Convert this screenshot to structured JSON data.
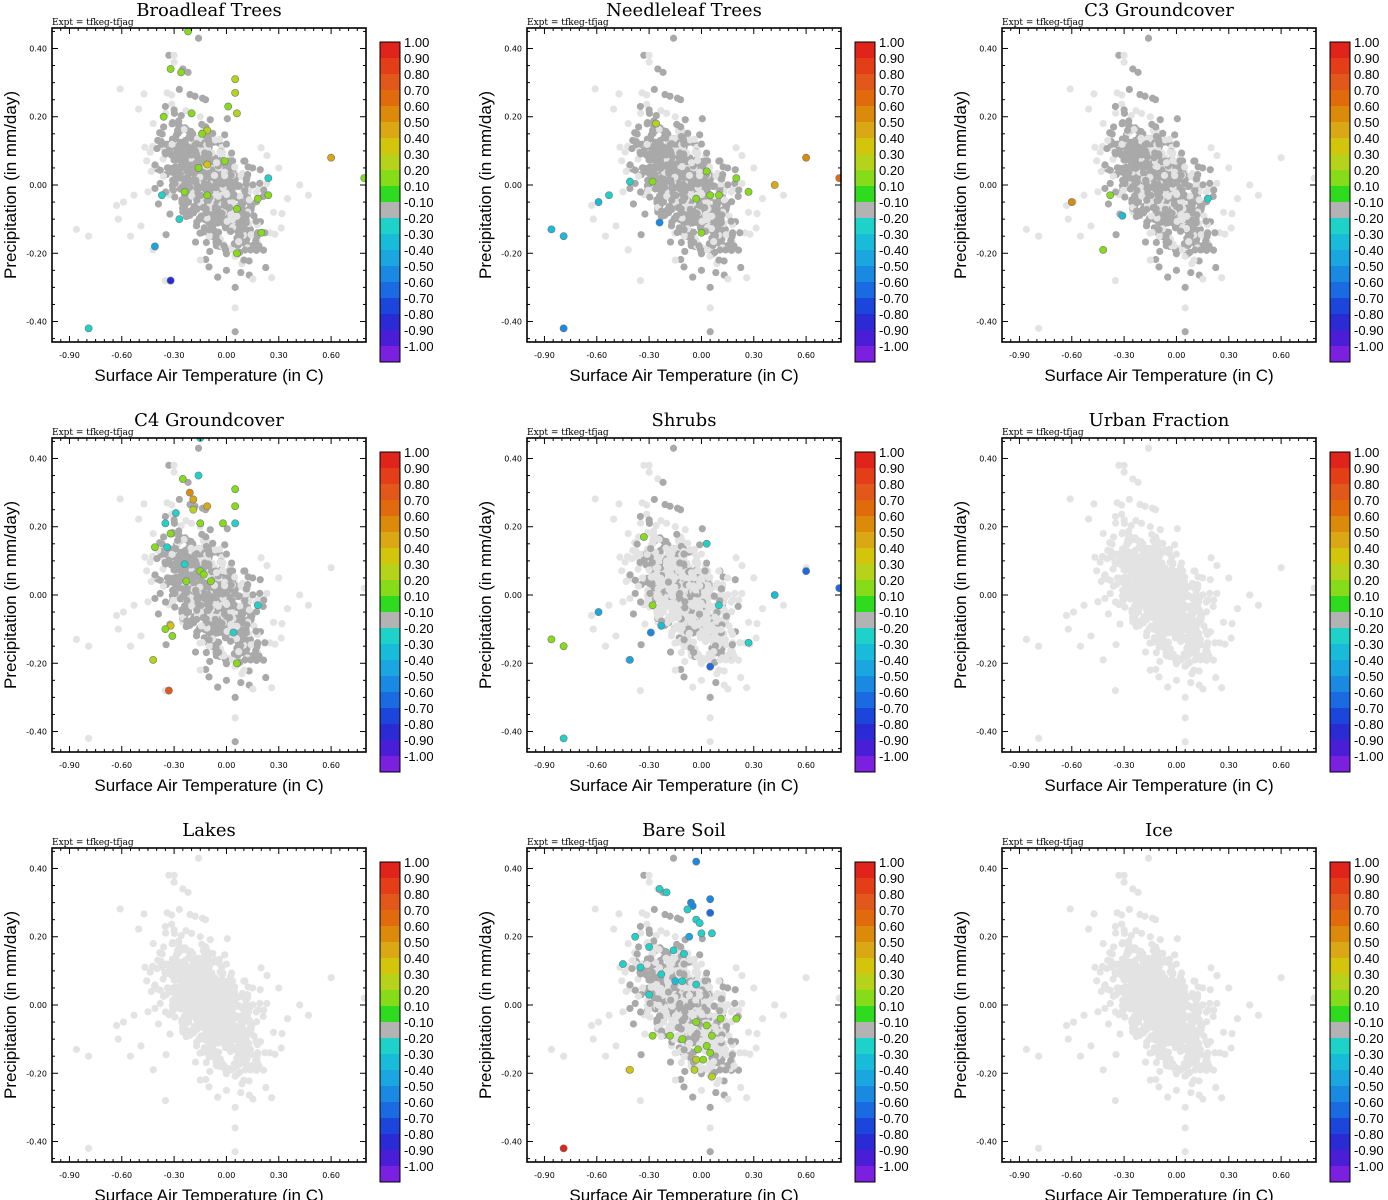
{
  "figure": {
    "annotation": "Expt = tfkeg-tfjag",
    "xlabel": "Surface Air Temperature (in C)",
    "ylabel": "Precipitation (in mm/day)",
    "x_ticks": [
      "-0.90",
      "-0.60",
      "-0.30",
      "0.00",
      "0.30",
      "0.60"
    ],
    "y_ticks": [
      "0.40",
      "0.20",
      "0.00",
      "-0.20",
      "-0.40"
    ]
  },
  "colorbar": {
    "labels": [
      "1.00",
      "0.90",
      "0.80",
      "0.70",
      "0.60",
      "0.50",
      "0.40",
      "0.30",
      "0.20",
      "0.10",
      "-0.10",
      "-0.20",
      "-0.30",
      "-0.40",
      "-0.50",
      "-0.60",
      "-0.70",
      "-0.80",
      "-0.90",
      "-1.00"
    ],
    "colors": [
      "#e0231b",
      "#e43e18",
      "#e2571a",
      "#e06a0c",
      "#dc8a0a",
      "#d9a814",
      "#d2c50c",
      "#b7d21a",
      "#86dc18",
      "#2fdb1f",
      "#b3b3b3",
      "#1fd2c9",
      "#18bcd8",
      "#1aa6de",
      "#1a89e1",
      "#1a6ae2",
      "#1c45db",
      "#2a2bd4",
      "#4a1dd6",
      "#7a20de"
    ]
  },
  "colors": {
    "background_point": "#e3e3e3",
    "neutral_point": "#a9a9a9"
  },
  "chart_data": [
    {
      "type": "scatter",
      "title": "Broadleaf Trees",
      "xlim": [
        -1.0,
        0.8
      ],
      "ylim": [
        -0.46,
        0.46
      ],
      "neutral_density": 0.75,
      "colored_points": [
        {
          "x": -0.22,
          "y": 0.45,
          "v": 0.15
        },
        {
          "x": -0.32,
          "y": 0.34,
          "v": 0.15
        },
        {
          "x": -0.26,
          "y": 0.33,
          "v": 0.2
        },
        {
          "x": 0.05,
          "y": 0.31,
          "v": 0.3
        },
        {
          "x": 0.05,
          "y": 0.27,
          "v": 0.3
        },
        {
          "x": 0.01,
          "y": 0.23,
          "v": 0.15
        },
        {
          "x": -0.2,
          "y": 0.21,
          "v": 0.15
        },
        {
          "x": -0.36,
          "y": 0.2,
          "v": 0.15
        },
        {
          "x": 0.06,
          "y": 0.21,
          "v": 0.3
        },
        {
          "x": -0.11,
          "y": 0.16,
          "v": 0.3
        },
        {
          "x": -0.14,
          "y": 0.15,
          "v": 0.15
        },
        {
          "x": -0.01,
          "y": 0.07,
          "v": 0.15
        },
        {
          "x": -0.11,
          "y": 0.06,
          "v": 0.4
        },
        {
          "x": 0.6,
          "y": 0.08,
          "v": 0.5
        },
        {
          "x": -0.16,
          "y": 0.05,
          "v": 0.15
        },
        {
          "x": 0.79,
          "y": 0.02,
          "v": 0.15
        },
        {
          "x": -0.37,
          "y": -0.03,
          "v": -0.2
        },
        {
          "x": -0.24,
          "y": -0.02,
          "v": 0.15
        },
        {
          "x": -0.11,
          "y": -0.03,
          "v": 0.15
        },
        {
          "x": 0.24,
          "y": -0.03,
          "v": 0.15
        },
        {
          "x": 0.06,
          "y": -0.07,
          "v": 0.15
        },
        {
          "x": 0.18,
          "y": -0.04,
          "v": 0.15
        },
        {
          "x": -0.27,
          "y": -0.1,
          "v": -0.2
        },
        {
          "x": 0.2,
          "y": -0.14,
          "v": 0.2
        },
        {
          "x": 0.06,
          "y": -0.2,
          "v": 0.15
        },
        {
          "x": -0.41,
          "y": -0.18,
          "v": -0.4
        },
        {
          "x": -0.32,
          "y": -0.28,
          "v": -0.8
        },
        {
          "x": -0.79,
          "y": -0.42,
          "v": -0.2
        },
        {
          "x": 0.24,
          "y": 0.02,
          "v": -0.2
        }
      ]
    },
    {
      "type": "scatter",
      "title": "Needleleaf Trees",
      "xlim": [
        -1.0,
        0.8
      ],
      "ylim": [
        -0.46,
        0.46
      ],
      "neutral_density": 0.72,
      "colored_points": [
        {
          "x": -0.26,
          "y": 0.18,
          "v": 0.3
        },
        {
          "x": 0.6,
          "y": 0.08,
          "v": 0.6
        },
        {
          "x": 0.79,
          "y": 0.02,
          "v": 0.7
        },
        {
          "x": 0.42,
          "y": 0.0,
          "v": 0.45
        },
        {
          "x": -0.28,
          "y": 0.01,
          "v": 0.15
        },
        {
          "x": 0.03,
          "y": 0.04,
          "v": 0.15
        },
        {
          "x": 0.2,
          "y": 0.02,
          "v": 0.15
        },
        {
          "x": 0.27,
          "y": -0.02,
          "v": 0.15
        },
        {
          "x": 0.05,
          "y": -0.03,
          "v": 0.15
        },
        {
          "x": -0.03,
          "y": -0.04,
          "v": 0.15
        },
        {
          "x": 0.1,
          "y": -0.03,
          "v": 0.15
        },
        {
          "x": 0.0,
          "y": -0.14,
          "v": 0.15
        },
        {
          "x": -0.53,
          "y": -0.03,
          "v": -0.2
        },
        {
          "x": -0.59,
          "y": -0.05,
          "v": -0.3
        },
        {
          "x": -0.41,
          "y": 0.01,
          "v": -0.2
        },
        {
          "x": -0.24,
          "y": -0.11,
          "v": -0.5
        },
        {
          "x": -0.86,
          "y": -0.13,
          "v": -0.3
        },
        {
          "x": -0.79,
          "y": -0.15,
          "v": -0.3
        },
        {
          "x": -0.79,
          "y": -0.42,
          "v": -0.5
        }
      ]
    },
    {
      "type": "scatter",
      "title": "C3 Groundcover",
      "xlim": [
        -1.0,
        0.8
      ],
      "ylim": [
        -0.46,
        0.46
      ],
      "neutral_density": 0.68,
      "colored_points": [
        {
          "x": -0.6,
          "y": -0.05,
          "v": 0.6
        },
        {
          "x": -0.42,
          "y": -0.19,
          "v": 0.15
        },
        {
          "x": -0.38,
          "y": -0.03,
          "v": 0.15
        },
        {
          "x": -0.31,
          "y": -0.09,
          "v": -0.3
        },
        {
          "x": 0.18,
          "y": -0.04,
          "v": -0.2
        }
      ]
    },
    {
      "type": "scatter",
      "title": "C4 Groundcover",
      "xlim": [
        -1.0,
        0.8
      ],
      "ylim": [
        -0.46,
        0.46
      ],
      "neutral_density": 0.68,
      "colored_points": [
        {
          "x": -0.15,
          "y": 0.46,
          "v": -0.2
        },
        {
          "x": -0.16,
          "y": 0.35,
          "v": -0.2
        },
        {
          "x": -0.25,
          "y": 0.34,
          "v": 0.15
        },
        {
          "x": -0.21,
          "y": 0.3,
          "v": 0.55
        },
        {
          "x": -0.19,
          "y": 0.28,
          "v": 0.45
        },
        {
          "x": 0.05,
          "y": 0.31,
          "v": 0.15
        },
        {
          "x": -0.19,
          "y": 0.25,
          "v": 0.3
        },
        {
          "x": -0.11,
          "y": 0.26,
          "v": 0.45
        },
        {
          "x": 0.05,
          "y": 0.26,
          "v": 0.15
        },
        {
          "x": -0.29,
          "y": 0.24,
          "v": -0.2
        },
        {
          "x": -0.35,
          "y": 0.21,
          "v": -0.2
        },
        {
          "x": -0.15,
          "y": 0.21,
          "v": 0.15
        },
        {
          "x": -0.02,
          "y": 0.21,
          "v": 0.15
        },
        {
          "x": 0.05,
          "y": 0.21,
          "v": -0.2
        },
        {
          "x": -0.32,
          "y": 0.18,
          "v": 0.15
        },
        {
          "x": -0.41,
          "y": 0.14,
          "v": 0.15
        },
        {
          "x": -0.34,
          "y": 0.14,
          "v": -0.2
        },
        {
          "x": -0.24,
          "y": 0.09,
          "v": -0.2
        },
        {
          "x": -0.15,
          "y": 0.07,
          "v": 0.15
        },
        {
          "x": -0.13,
          "y": 0.06,
          "v": 0.15
        },
        {
          "x": -0.23,
          "y": 0.04,
          "v": 0.15
        },
        {
          "x": -0.09,
          "y": 0.04,
          "v": 0.15
        },
        {
          "x": -0.32,
          "y": -0.09,
          "v": 0.4
        },
        {
          "x": -0.35,
          "y": -0.1,
          "v": 0.15
        },
        {
          "x": -0.31,
          "y": -0.12,
          "v": 0.15
        },
        {
          "x": 0.04,
          "y": -0.11,
          "v": -0.2
        },
        {
          "x": 0.06,
          "y": -0.2,
          "v": 0.15
        },
        {
          "x": -0.42,
          "y": -0.19,
          "v": 0.3
        },
        {
          "x": -0.33,
          "y": -0.28,
          "v": 0.75
        },
        {
          "x": 0.18,
          "y": -0.03,
          "v": -0.2
        }
      ]
    },
    {
      "type": "scatter",
      "title": "Shrubs",
      "xlim": [
        -1.0,
        0.8
      ],
      "ylim": [
        -0.46,
        0.46
      ],
      "neutral_density": 0.28,
      "colored_points": [
        {
          "x": -0.33,
          "y": 0.17,
          "v": 0.15
        },
        {
          "x": 0.03,
          "y": 0.15,
          "v": -0.2
        },
        {
          "x": 0.6,
          "y": 0.07,
          "v": -0.6
        },
        {
          "x": 0.79,
          "y": 0.02,
          "v": -0.6
        },
        {
          "x": 0.42,
          "y": 0.0,
          "v": -0.3
        },
        {
          "x": -0.28,
          "y": -0.03,
          "v": 0.15
        },
        {
          "x": -0.59,
          "y": -0.05,
          "v": -0.4
        },
        {
          "x": -0.23,
          "y": -0.09,
          "v": -0.3
        },
        {
          "x": -0.29,
          "y": -0.11,
          "v": -0.5
        },
        {
          "x": 0.27,
          "y": -0.14,
          "v": -0.2
        },
        {
          "x": -0.86,
          "y": -0.13,
          "v": 0.15
        },
        {
          "x": -0.79,
          "y": -0.15,
          "v": 0.15
        },
        {
          "x": -0.41,
          "y": -0.19,
          "v": -0.4
        },
        {
          "x": 0.05,
          "y": -0.21,
          "v": -0.6
        },
        {
          "x": -0.79,
          "y": -0.42,
          "v": -0.2
        },
        {
          "x": 0.1,
          "y": -0.03,
          "v": -0.2
        }
      ]
    },
    {
      "type": "scatter",
      "title": "Urban Fraction",
      "xlim": [
        -1.0,
        0.8
      ],
      "ylim": [
        -0.46,
        0.46
      ],
      "neutral_density": 0.0,
      "colored_points": []
    },
    {
      "type": "scatter",
      "title": "Lakes",
      "xlim": [
        -1.0,
        0.8
      ],
      "ylim": [
        -0.46,
        0.46
      ],
      "neutral_density": 0.0,
      "colored_points": []
    },
    {
      "type": "scatter",
      "title": "Bare Soil",
      "xlim": [
        -1.0,
        0.8
      ],
      "ylim": [
        -0.46,
        0.46
      ],
      "neutral_density": 0.42,
      "colored_points": [
        {
          "x": -0.03,
          "y": 0.42,
          "v": -0.5
        },
        {
          "x": -0.06,
          "y": 0.3,
          "v": -0.5
        },
        {
          "x": -0.24,
          "y": 0.34,
          "v": -0.2
        },
        {
          "x": -0.2,
          "y": 0.33,
          "v": -0.2
        },
        {
          "x": 0.05,
          "y": 0.31,
          "v": -0.5
        },
        {
          "x": -0.05,
          "y": 0.29,
          "v": -0.5
        },
        {
          "x": 0.05,
          "y": 0.27,
          "v": -0.6
        },
        {
          "x": -0.08,
          "y": 0.28,
          "v": -0.2
        },
        {
          "x": -0.03,
          "y": 0.25,
          "v": -0.2
        },
        {
          "x": -0.01,
          "y": 0.24,
          "v": -0.2
        },
        {
          "x": 0.0,
          "y": 0.21,
          "v": -0.2
        },
        {
          "x": 0.06,
          "y": 0.21,
          "v": -0.2
        },
        {
          "x": -0.07,
          "y": 0.2,
          "v": -0.4
        },
        {
          "x": -0.38,
          "y": 0.2,
          "v": -0.2
        },
        {
          "x": -0.3,
          "y": 0.17,
          "v": -0.2
        },
        {
          "x": -0.16,
          "y": 0.16,
          "v": -0.2
        },
        {
          "x": -0.1,
          "y": 0.15,
          "v": -0.2
        },
        {
          "x": -0.45,
          "y": 0.12,
          "v": -0.2
        },
        {
          "x": -0.35,
          "y": 0.11,
          "v": -0.2
        },
        {
          "x": -0.23,
          "y": 0.09,
          "v": -0.2
        },
        {
          "x": -0.03,
          "y": 0.06,
          "v": -0.2
        },
        {
          "x": -0.15,
          "y": 0.07,
          "v": -0.3
        },
        {
          "x": -0.11,
          "y": 0.07,
          "v": -0.2
        },
        {
          "x": -0.3,
          "y": 0.03,
          "v": -0.2
        },
        {
          "x": -0.03,
          "y": -0.05,
          "v": 0.15
        },
        {
          "x": 0.03,
          "y": -0.06,
          "v": 0.15
        },
        {
          "x": 0.11,
          "y": -0.04,
          "v": 0.15
        },
        {
          "x": 0.2,
          "y": -0.04,
          "v": 0.15
        },
        {
          "x": -0.28,
          "y": -0.09,
          "v": 0.15
        },
        {
          "x": -0.18,
          "y": -0.09,
          "v": 0.15
        },
        {
          "x": -0.11,
          "y": -0.1,
          "v": 0.15
        },
        {
          "x": 0.06,
          "y": -0.09,
          "v": 0.15
        },
        {
          "x": 0.03,
          "y": -0.12,
          "v": 0.15
        },
        {
          "x": -0.02,
          "y": -0.13,
          "v": 0.15
        },
        {
          "x": 0.01,
          "y": -0.16,
          "v": 0.15
        },
        {
          "x": 0.05,
          "y": -0.14,
          "v": 0.15
        },
        {
          "x": -0.04,
          "y": -0.19,
          "v": 0.3
        },
        {
          "x": -0.03,
          "y": -0.16,
          "v": 0.3
        },
        {
          "x": 0.06,
          "y": -0.21,
          "v": 0.3
        },
        {
          "x": -0.41,
          "y": -0.19,
          "v": 0.4
        },
        {
          "x": -0.79,
          "y": -0.42,
          "v": 1.0
        }
      ]
    },
    {
      "type": "scatter",
      "title": "Ice",
      "xlim": [
        -1.0,
        0.8
      ],
      "ylim": [
        -0.46,
        0.46
      ],
      "neutral_density": 0.0,
      "colored_points": []
    }
  ]
}
